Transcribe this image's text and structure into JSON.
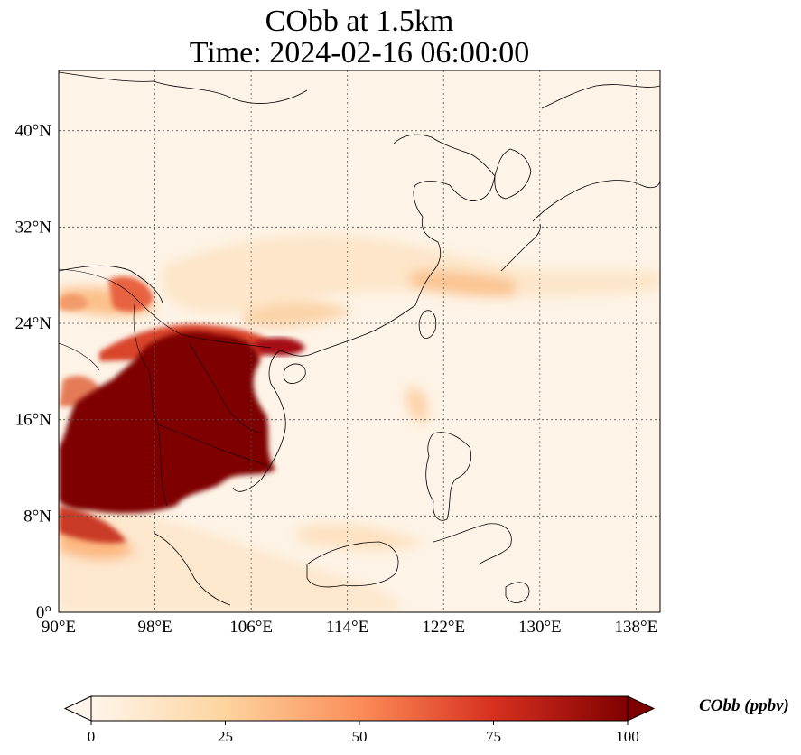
{
  "title": "CObb at 1.5km",
  "subtitle": "Time: 2024-02-16 06:00:00",
  "map": {
    "lon_range": [
      90,
      140
    ],
    "lat_range": [
      0,
      45
    ],
    "lon_ticks": [
      "90°E",
      "98°E",
      "106°E",
      "114°E",
      "122°E",
      "130°E",
      "138°E"
    ],
    "lat_ticks": [
      "0°",
      "8°N",
      "16°N",
      "24°N",
      "32°N",
      "40°N"
    ],
    "gridlines": true
  },
  "colorbar": {
    "label": "CObb (ppbv)",
    "ticks": [
      "0",
      "25",
      "50",
      "75",
      "100"
    ],
    "colors": [
      "#fff5eb",
      "#fdd49e",
      "#fc8d59",
      "#d7301f",
      "#7f0000"
    ],
    "extend": "both"
  }
}
